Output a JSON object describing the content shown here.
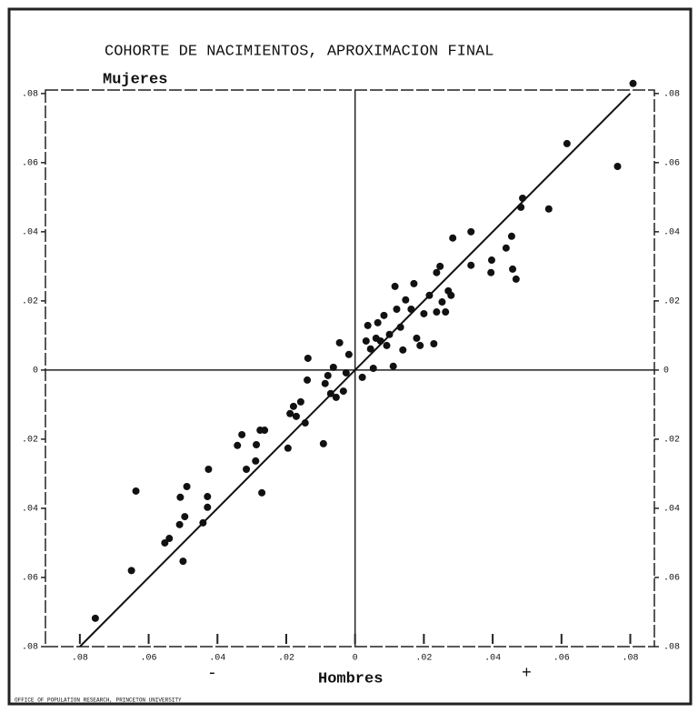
{
  "chart_data": {
    "type": "scatter",
    "title": "COHORTE DE NACIMIENTOS, APROXIMACION FINAL",
    "y_label": "Mujeres",
    "x_label": "Hombres",
    "sign_negative": "-",
    "sign_positive": "+",
    "credit": "OFFICE OF POPULATION RESEARCH, PRINCETON UNIVERSITY",
    "color": "#111111",
    "xlim": [
      -0.09,
      0.087
    ],
    "ylim": [
      -0.08,
      0.081
    ],
    "xticks": [
      {
        "value": -0.08,
        "label": ".08"
      },
      {
        "value": -0.06,
        "label": ".06"
      },
      {
        "value": -0.04,
        "label": ".04"
      },
      {
        "value": -0.02,
        "label": ".02"
      },
      0,
      {
        "value": 0.02,
        "label": ".02"
      },
      {
        "value": 0.04,
        "label": ".04"
      },
      {
        "value": 0.06,
        "label": ".06"
      },
      {
        "value": 0.08,
        "label": ".08"
      }
    ],
    "yticks": [
      {
        "value": -0.08,
        "label": ".08"
      },
      {
        "value": -0.06,
        "label": ".06"
      },
      {
        "value": -0.04,
        "label": ".04"
      },
      {
        "value": -0.02,
        "label": ".02"
      },
      0,
      {
        "value": 0.02,
        "label": ".02"
      },
      {
        "value": 0.04,
        "label": ".04"
      },
      {
        "value": 0.06,
        "label": ".06"
      },
      {
        "value": 0.08,
        "label": ".08"
      }
    ],
    "fit_line": {
      "x": [
        -0.08,
        0.08
      ],
      "y": [
        -0.08,
        0.08
      ]
    },
    "x": [
      -0.0755,
      -0.065,
      -0.0637,
      -0.0553,
      -0.054,
      -0.051,
      -0.05,
      -0.0495,
      -0.0489,
      -0.0508,
      -0.0442,
      -0.0429,
      -0.0429,
      -0.0426,
      -0.0342,
      -0.0329,
      -0.0316,
      -0.0289,
      -0.0287,
      -0.0276,
      -0.0263,
      -0.0271,
      -0.0195,
      -0.0189,
      -0.0179,
      -0.0171,
      -0.0158,
      -0.0145,
      -0.0139,
      -0.0137,
      -0.0092,
      -0.0087,
      -0.0079,
      -0.0071,
      -0.0063,
      -0.0055,
      -0.0045,
      -0.0034,
      -0.0026,
      -0.0018,
      0.0021,
      0.0032,
      0.0037,
      0.0045,
      0.0053,
      0.0061,
      0.0066,
      0.0074,
      0.0084,
      0.0092,
      0.01,
      0.0111,
      0.0116,
      0.0121,
      0.0132,
      0.0139,
      0.0147,
      0.0163,
      0.0171,
      0.0179,
      0.0189,
      0.02,
      0.0216,
      0.0229,
      0.0237,
      0.0237,
      0.0247,
      0.0253,
      0.0263,
      0.0271,
      0.0279,
      0.0284,
      0.0337,
      0.0337,
      0.0395,
      0.0397,
      0.0439,
      0.0455,
      0.0458,
      0.0468,
      0.0482,
      0.0487,
      0.0563,
      0.0616,
      0.0763,
      0.0808
    ],
    "values": [
      -0.0718,
      -0.058,
      -0.035,
      -0.05,
      -0.0487,
      -0.0447,
      -0.0553,
      -0.0424,
      -0.0337,
      -0.0368,
      -0.0442,
      -0.0366,
      -0.0397,
      -0.0287,
      -0.0218,
      -0.0187,
      -0.0287,
      -0.0263,
      -0.0216,
      -0.0174,
      -0.0174,
      -0.0355,
      -0.0226,
      -0.0126,
      -0.0105,
      -0.0134,
      -0.0092,
      -0.0153,
      -0.0029,
      0.0034,
      -0.0213,
      -0.0039,
      -0.0016,
      -0.0068,
      0.0008,
      -0.0079,
      0.0079,
      -0.0061,
      -0.0008,
      0.0045,
      -0.0021,
      0.0084,
      0.0129,
      0.0061,
      0.0005,
      0.0092,
      0.0137,
      0.0084,
      0.0158,
      0.0071,
      0.0103,
      0.0011,
      0.0242,
      0.0176,
      0.0124,
      0.0058,
      0.0203,
      0.0176,
      0.025,
      0.0092,
      0.0071,
      0.0163,
      0.0216,
      0.0076,
      0.0282,
      0.0168,
      0.03,
      0.0197,
      0.0168,
      0.0229,
      0.0216,
      0.0382,
      0.0303,
      0.04,
      0.0282,
      0.0318,
      0.0353,
      0.0387,
      0.0292,
      0.0263,
      0.0471,
      0.0497,
      0.0466,
      0.0655,
      0.0589,
      0.0829
    ]
  }
}
